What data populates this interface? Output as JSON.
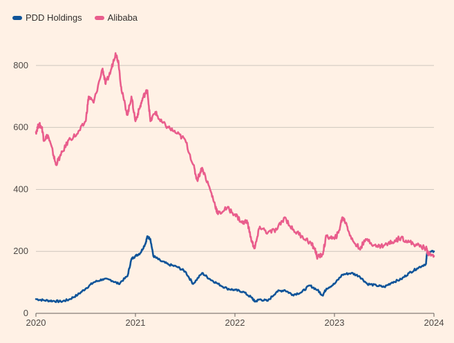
{
  "chart_data": {
    "type": "line",
    "title": "",
    "xlabel": "",
    "ylabel": "",
    "xlim": [
      2020,
      2024
    ],
    "ylim": [
      0,
      900
    ],
    "x_ticks": [
      "2020",
      "2021",
      "2022",
      "2023",
      "2024"
    ],
    "y_ticks": [
      "0",
      "200",
      "400",
      "600",
      "800"
    ],
    "legend": "top-left",
    "series": [
      {
        "name": "PDD Holdings",
        "color": "#0f5499",
        "points": [
          [
            2020.0,
            46
          ],
          [
            2020.08,
            42
          ],
          [
            2020.17,
            40
          ],
          [
            2020.25,
            38
          ],
          [
            2020.33,
            44
          ],
          [
            2020.42,
            60
          ],
          [
            2020.5,
            80
          ],
          [
            2020.58,
            100
          ],
          [
            2020.67,
            110
          ],
          [
            2020.75,
            108
          ],
          [
            2020.83,
            95
          ],
          [
            2020.92,
            120
          ],
          [
            2020.96,
            175
          ],
          [
            2021.0,
            185
          ],
          [
            2021.05,
            195
          ],
          [
            2021.1,
            225
          ],
          [
            2021.12,
            248
          ],
          [
            2021.15,
            240
          ],
          [
            2021.18,
            185
          ],
          [
            2021.25,
            170
          ],
          [
            2021.33,
            158
          ],
          [
            2021.42,
            150
          ],
          [
            2021.5,
            135
          ],
          [
            2021.58,
            95
          ],
          [
            2021.67,
            130
          ],
          [
            2021.75,
            110
          ],
          [
            2021.83,
            95
          ],
          [
            2021.92,
            80
          ],
          [
            2022.0,
            75
          ],
          [
            2022.08,
            70
          ],
          [
            2022.17,
            50
          ],
          [
            2022.2,
            38
          ],
          [
            2022.25,
            45
          ],
          [
            2022.33,
            40
          ],
          [
            2022.42,
            70
          ],
          [
            2022.5,
            75
          ],
          [
            2022.58,
            60
          ],
          [
            2022.67,
            68
          ],
          [
            2022.75,
            90
          ],
          [
            2022.83,
            75
          ],
          [
            2022.88,
            58
          ],
          [
            2022.92,
            80
          ],
          [
            2023.0,
            95
          ],
          [
            2023.08,
            125
          ],
          [
            2023.17,
            130
          ],
          [
            2023.25,
            120
          ],
          [
            2023.33,
            95
          ],
          [
            2023.42,
            90
          ],
          [
            2023.5,
            85
          ],
          [
            2023.58,
            100
          ],
          [
            2023.67,
            110
          ],
          [
            2023.75,
            130
          ],
          [
            2023.83,
            145
          ],
          [
            2023.92,
            160
          ],
          [
            2023.93,
            195
          ],
          [
            2024.0,
            200
          ]
        ]
      },
      {
        "name": "Alibaba",
        "color": "#e95d8c",
        "points": [
          [
            2020.0,
            585
          ],
          [
            2020.03,
            610
          ],
          [
            2020.06,
            600
          ],
          [
            2020.08,
            560
          ],
          [
            2020.12,
            575
          ],
          [
            2020.17,
            520
          ],
          [
            2020.2,
            480
          ],
          [
            2020.25,
            510
          ],
          [
            2020.33,
            560
          ],
          [
            2020.42,
            580
          ],
          [
            2020.5,
            620
          ],
          [
            2020.53,
            700
          ],
          [
            2020.58,
            680
          ],
          [
            2020.67,
            790
          ],
          [
            2020.7,
            740
          ],
          [
            2020.75,
            780
          ],
          [
            2020.8,
            840
          ],
          [
            2020.83,
            810
          ],
          [
            2020.86,
            720
          ],
          [
            2020.92,
            640
          ],
          [
            2020.96,
            700
          ],
          [
            2021.0,
            620
          ],
          [
            2021.04,
            660
          ],
          [
            2021.08,
            700
          ],
          [
            2021.12,
            720
          ],
          [
            2021.15,
            620
          ],
          [
            2021.2,
            650
          ],
          [
            2021.25,
            620
          ],
          [
            2021.33,
            600
          ],
          [
            2021.42,
            580
          ],
          [
            2021.5,
            560
          ],
          [
            2021.58,
            480
          ],
          [
            2021.62,
            430
          ],
          [
            2021.67,
            470
          ],
          [
            2021.75,
            400
          ],
          [
            2021.8,
            350
          ],
          [
            2021.83,
            320
          ],
          [
            2021.92,
            340
          ],
          [
            2022.0,
            320
          ],
          [
            2022.08,
            290
          ],
          [
            2022.12,
            300
          ],
          [
            2022.17,
            230
          ],
          [
            2022.2,
            210
          ],
          [
            2022.25,
            280
          ],
          [
            2022.33,
            260
          ],
          [
            2022.42,
            270
          ],
          [
            2022.5,
            310
          ],
          [
            2022.58,
            270
          ],
          [
            2022.67,
            250
          ],
          [
            2022.75,
            230
          ],
          [
            2022.8,
            210
          ],
          [
            2022.83,
            180
          ],
          [
            2022.88,
            190
          ],
          [
            2022.92,
            250
          ],
          [
            2023.0,
            240
          ],
          [
            2023.04,
            260
          ],
          [
            2023.08,
            310
          ],
          [
            2023.12,
            290
          ],
          [
            2023.17,
            240
          ],
          [
            2023.25,
            210
          ],
          [
            2023.33,
            240
          ],
          [
            2023.42,
            215
          ],
          [
            2023.5,
            220
          ],
          [
            2023.58,
            230
          ],
          [
            2023.67,
            245
          ],
          [
            2023.75,
            230
          ],
          [
            2023.83,
            220
          ],
          [
            2023.92,
            210
          ],
          [
            2023.95,
            190
          ],
          [
            2024.0,
            185
          ]
        ]
      }
    ]
  }
}
